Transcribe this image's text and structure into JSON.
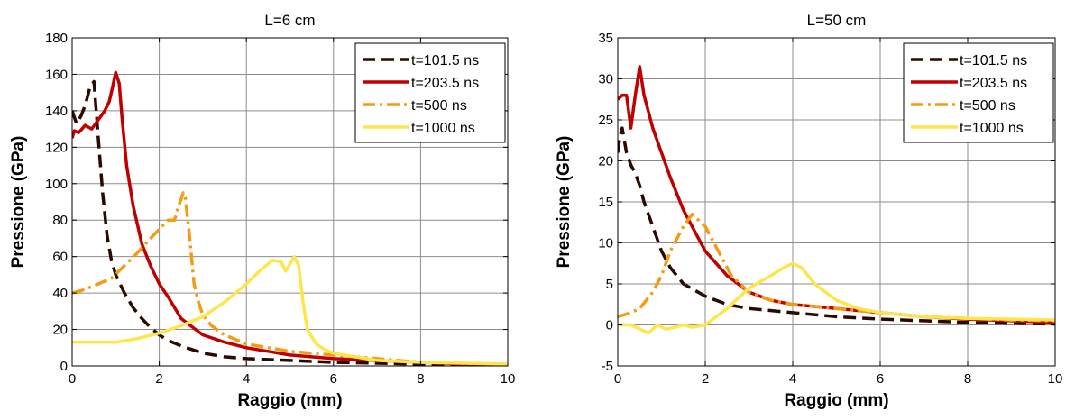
{
  "chart_data": [
    {
      "type": "line",
      "title": "L=6 cm",
      "xlabel": "Raggio (mm)",
      "ylabel": "Pressione (GPa)",
      "xlim": [
        0,
        10
      ],
      "ylim": [
        0,
        180
      ],
      "xticks": [
        0,
        2,
        4,
        6,
        8,
        10
      ],
      "yticks": [
        0,
        20,
        40,
        60,
        80,
        100,
        120,
        140,
        160,
        180
      ],
      "grid": true,
      "legend_position": "top-right",
      "series": [
        {
          "name": "t=101.5 ns",
          "color": "#2a0a00",
          "dash": "dashed",
          "x": [
            0,
            0.1,
            0.2,
            0.3,
            0.4,
            0.5,
            0.6,
            0.7,
            0.8,
            0.9,
            1.0,
            1.2,
            1.4,
            1.6,
            1.8,
            2.0,
            2.2,
            2.5,
            3.0,
            3.5,
            4.0,
            5.0,
            6.0,
            7.0,
            8.0,
            9.0,
            10.0
          ],
          "y": [
            140,
            133,
            137,
            143,
            152,
            156,
            125,
            95,
            72,
            58,
            50,
            40,
            32,
            26,
            21,
            17,
            14,
            11,
            7,
            5,
            4,
            3,
            2,
            1.5,
            1,
            0.8,
            0.5
          ]
        },
        {
          "name": "t=203.5 ns",
          "color": "#c00000",
          "dash": "solid",
          "x": [
            0,
            0.05,
            0.15,
            0.3,
            0.45,
            0.6,
            0.75,
            0.85,
            0.92,
            1.0,
            1.08,
            1.15,
            1.25,
            1.4,
            1.6,
            1.8,
            2.0,
            2.2,
            2.5,
            3.0,
            3.5,
            4.0,
            5.0,
            6.0,
            7.0,
            8.0,
            9.0,
            10.0
          ],
          "y": [
            125,
            129,
            128,
            132,
            130,
            135,
            140,
            145,
            152,
            161,
            155,
            135,
            110,
            88,
            67,
            55,
            45,
            38,
            26,
            17,
            13,
            10,
            6,
            4,
            3,
            2,
            1,
            0.5
          ]
        },
        {
          "name": "t=500 ns",
          "color": "#f39c12",
          "dash": "dashdot",
          "x": [
            0,
            0.3,
            0.6,
            0.9,
            1.2,
            1.5,
            1.8,
            2.0,
            2.2,
            2.35,
            2.45,
            2.55,
            2.6,
            2.7,
            2.8,
            2.9,
            3.0,
            3.2,
            3.5,
            4.0,
            5.0,
            6.0,
            7.0,
            8.0,
            9.0,
            10.0
          ],
          "y": [
            40,
            42,
            45,
            48,
            55,
            62,
            70,
            75,
            80,
            80,
            88,
            95,
            92,
            70,
            45,
            35,
            28,
            22,
            17,
            12,
            8,
            6,
            4,
            2,
            1.5,
            1
          ]
        },
        {
          "name": "t=1000 ns",
          "color": "#fde64b",
          "dash": "solid",
          "x": [
            0,
            0.5,
            1.0,
            1.5,
            2.0,
            2.5,
            3.0,
            3.5,
            4.0,
            4.3,
            4.6,
            4.8,
            4.9,
            5.0,
            5.1,
            5.2,
            5.3,
            5.4,
            5.6,
            5.8,
            6.0,
            6.5,
            7.0,
            8.0,
            9.0,
            10.0
          ],
          "y": [
            13,
            13,
            13,
            15,
            18,
            22,
            27,
            35,
            45,
            52,
            58,
            57,
            52,
            56,
            60,
            55,
            35,
            20,
            12,
            9,
            7,
            5,
            3,
            2,
            1.5,
            1
          ]
        }
      ]
    },
    {
      "type": "line",
      "title": "L=50 cm",
      "xlabel": "Raggio (mm)",
      "ylabel": "Pressione (GPa)",
      "xlim": [
        0,
        10
      ],
      "ylim": [
        -5,
        35
      ],
      "xticks": [
        0,
        2,
        4,
        6,
        8,
        10
      ],
      "yticks": [
        -5,
        0,
        5,
        10,
        15,
        20,
        25,
        30,
        35
      ],
      "grid": true,
      "legend_position": "top-right",
      "series": [
        {
          "name": "t=101.5 ns",
          "color": "#2a0a00",
          "dash": "dashed",
          "x": [
            0,
            0.05,
            0.1,
            0.2,
            0.3,
            0.4,
            0.5,
            0.6,
            0.8,
            1.0,
            1.2,
            1.5,
            2.0,
            2.5,
            3.0,
            4.0,
            5.0,
            6.0,
            7.0,
            8.0,
            9.0,
            10.0
          ],
          "y": [
            21,
            23,
            24,
            21,
            19.5,
            18.5,
            17,
            15,
            12,
            9,
            7,
            5,
            3.5,
            2.5,
            2,
            1.5,
            1,
            0.7,
            0.5,
            0.3,
            0.2,
            0.1
          ]
        },
        {
          "name": "t=203.5 ns",
          "color": "#c00000",
          "dash": "solid",
          "x": [
            0,
            0.1,
            0.2,
            0.3,
            0.4,
            0.5,
            0.6,
            0.7,
            0.8,
            1.0,
            1.2,
            1.5,
            1.8,
            2.0,
            2.5,
            3.0,
            3.5,
            4.0,
            5.0,
            6.0,
            7.0,
            8.0,
            9.0,
            10.0
          ],
          "y": [
            27.5,
            28,
            28,
            24,
            28,
            31.5,
            28,
            26,
            24,
            21,
            18,
            14,
            11,
            9,
            6,
            4,
            3,
            2.5,
            2,
            1.5,
            1,
            0.7,
            0.5,
            0.3
          ]
        },
        {
          "name": "t=500 ns",
          "color": "#f39c12",
          "dash": "dashdot",
          "x": [
            0,
            0.3,
            0.5,
            0.8,
            1.0,
            1.2,
            1.5,
            1.7,
            2.0,
            2.3,
            2.6,
            3.0,
            3.5,
            4.0,
            5.0,
            6.0,
            7.0,
            8.0,
            9.0,
            10.0
          ],
          "y": [
            1,
            1.5,
            2,
            4,
            6,
            9,
            12,
            13.5,
            12,
            9,
            6,
            4,
            3,
            2.5,
            2,
            1.5,
            1,
            0.8,
            0.6,
            0.5
          ]
        },
        {
          "name": "t=1000 ns",
          "color": "#fde64b",
          "dash": "solid",
          "x": [
            0,
            0.3,
            0.5,
            0.7,
            0.9,
            1.1,
            1.3,
            1.5,
            1.7,
            2.0,
            2.5,
            3.0,
            3.5,
            3.8,
            4.0,
            4.2,
            4.5,
            5.0,
            5.5,
            6.0,
            7.0,
            8.0,
            9.0,
            10.0
          ],
          "y": [
            0,
            0,
            -0.5,
            -1,
            0,
            -0.5,
            -0.3,
            0,
            -0.3,
            0,
            2,
            4.5,
            6,
            7,
            7.5,
            7,
            5,
            3,
            2,
            1.5,
            1,
            0.8,
            0.7,
            0.6
          ]
        }
      ]
    }
  ]
}
